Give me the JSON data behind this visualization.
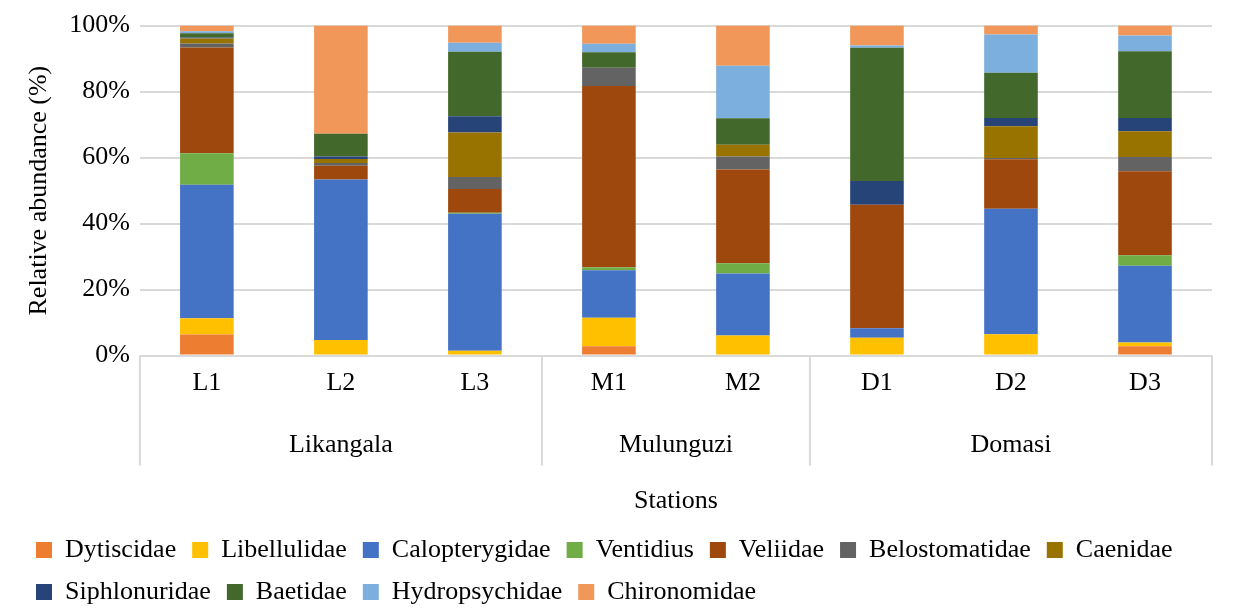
{
  "chart_data": {
    "type": "bar",
    "stacked": true,
    "xlabel": "Stations",
    "ylabel": "Relative abundance (%)",
    "categories": [
      "L1",
      "L2",
      "L3",
      "M1",
      "M2",
      "D1",
      "D2",
      "D3"
    ],
    "annotations": [
      "Likangala",
      "Mulunguzi",
      "Domasi"
    ],
    "ylim": [
      0,
      100
    ],
    "yticks": [
      {
        "value": 0,
        "label": "0%"
      },
      {
        "value": 20,
        "label": "20%"
      },
      {
        "value": 40,
        "label": "40%"
      },
      {
        "value": 60,
        "label": "60%"
      },
      {
        "value": 80,
        "label": "80%"
      },
      {
        "value": 100,
        "label": "100%"
      }
    ],
    "grid": "y",
    "legend": "bottom",
    "series": [
      {
        "name": "Dytiscidae",
        "color": "#ed7d31",
        "values": [
          6.4,
          0,
          0,
          2.8,
          0,
          0,
          0,
          2.8
        ]
      },
      {
        "name": "Libellulidae",
        "color": "#ffc000",
        "values": [
          4.9,
          4.7,
          1.5,
          8.7,
          6.1,
          5.4,
          6.5,
          1.2
        ]
      },
      {
        "name": "Calopterygidae",
        "color": "#4472c4",
        "values": [
          40.5,
          48.7,
          41.5,
          14.4,
          18.8,
          2.9,
          38.0,
          23.2
        ]
      },
      {
        "name": "Ventidius",
        "color": "#70ad47",
        "values": [
          9.5,
          0,
          0.3,
          0.9,
          3.1,
          0,
          0,
          3.2
        ]
      },
      {
        "name": "Veliidae",
        "color": "#9e480e",
        "values": [
          32.1,
          4.1,
          7.2,
          54.9,
          28.4,
          37.4,
          15.0,
          25.5
        ]
      },
      {
        "name": "Belostomatidae",
        "color": "#636363",
        "values": [
          1.2,
          0.9,
          3.6,
          5.5,
          3.9,
          0,
          0.4,
          4.3
        ]
      },
      {
        "name": "Caenidae",
        "color": "#997300",
        "values": [
          1.5,
          1.2,
          13.5,
          0,
          3.6,
          0,
          9.6,
          7.8
        ]
      },
      {
        "name": "Siphlonuridae",
        "color": "#264478",
        "values": [
          0.3,
          0.7,
          4.9,
          0,
          0,
          7.2,
          2.5,
          4.0
        ]
      },
      {
        "name": "Baetidae",
        "color": "#43682b",
        "values": [
          1.3,
          6.9,
          19.6,
          4.7,
          8.0,
          40.4,
          13.7,
          20.2
        ]
      },
      {
        "name": "Hydropsychidae",
        "color": "#7cafdd",
        "values": [
          0.6,
          0,
          2.7,
          2.6,
          15.9,
          0.7,
          11.6,
          4.8
        ]
      },
      {
        "name": "Chironomidae",
        "color": "#f1975a",
        "values": [
          1.7,
          32.8,
          5.2,
          5.5,
          12.2,
          6.0,
          2.7,
          3.0
        ]
      }
    ]
  }
}
